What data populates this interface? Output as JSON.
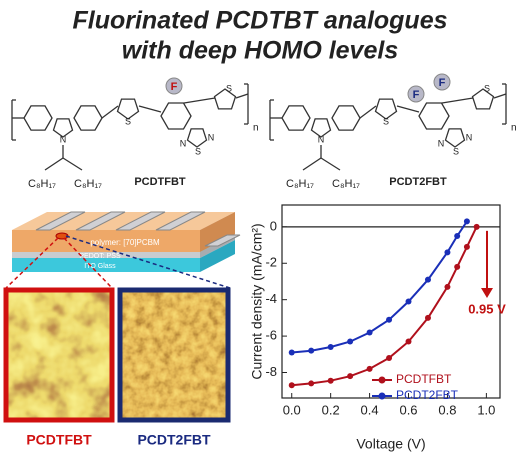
{
  "header": {
    "title_lines": [
      "Fluorinated PCDTBT analogues",
      "with deep HOMO levels"
    ]
  },
  "molecules": [
    {
      "name": "PCDTFBT",
      "atoms": [
        "F",
        "N",
        "S",
        "N",
        "S",
        "N",
        "S"
      ],
      "repeat": "n",
      "side_chains": [
        "C₈H₁₇",
        "C₈H₁₇"
      ]
    },
    {
      "name": "PCDT2FBT",
      "atoms": [
        "F",
        "F",
        "N",
        "S",
        "N",
        "S",
        "N",
        "S"
      ],
      "repeat": "n",
      "side_chains": [
        "C₈H₁₇",
        "C₈H₁₇"
      ]
    }
  ],
  "device": {
    "layers": [
      "polymer: [70]PCBM",
      "PEDOT: PSS",
      "ITO Glass"
    ]
  },
  "afm_images": [
    {
      "label": "PCDTFBT"
    },
    {
      "label": "PCDT2FBT"
    }
  ],
  "chart_data": {
    "type": "line",
    "x_label": "Voltage (V)",
    "y_label": "Current density (mA/cm²)",
    "x": [
      0,
      0.1,
      0.2,
      0.3,
      0.4,
      0.5,
      0.6,
      0.7,
      0.8,
      0.85,
      0.9,
      0.95
    ],
    "series": [
      {
        "name": "PCDTFBT",
        "color": "#b0101c",
        "values": [
          -8.7,
          -8.6,
          -8.45,
          -8.2,
          -7.8,
          -7.2,
          -6.3,
          -5.0,
          -3.3,
          -2.2,
          -1.1,
          0.0
        ]
      },
      {
        "name": "PCDT2FBT",
        "color": "#1a2fb8",
        "values": [
          -6.9,
          -6.8,
          -6.6,
          -6.3,
          -5.8,
          -5.1,
          -4.1,
          -2.9,
          -1.4,
          -0.5,
          0.3,
          null
        ]
      }
    ],
    "xlim": [
      -0.05,
      1.07
    ],
    "ylim": [
      -9.4,
      1.2
    ],
    "xticks": [
      {
        "value": 0,
        "label": "0.0"
      },
      0.2,
      0.4,
      0.6,
      0.8,
      {
        "value": 1,
        "label": "1.0"
      }
    ],
    "yticks": [
      0,
      -2,
      -4,
      -6,
      -8
    ],
    "annotation": "0.95 V",
    "zero_line": true,
    "legend": "lower right"
  }
}
